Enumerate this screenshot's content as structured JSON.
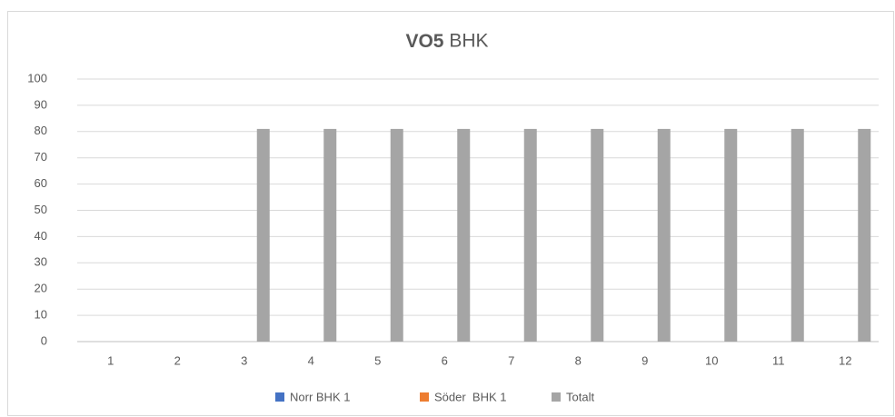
{
  "chart_data": {
    "type": "bar",
    "title": "VO5 BHK",
    "categories": [
      "1",
      "2",
      "3",
      "4",
      "5",
      "6",
      "7",
      "8",
      "9",
      "10",
      "11",
      "12"
    ],
    "series": [
      {
        "name": "Norr BHK 1",
        "color": "#4472c4",
        "values": [
          null,
          null,
          null,
          null,
          null,
          null,
          null,
          null,
          null,
          null,
          null,
          null
        ]
      },
      {
        "name": "Söder  BHK 1",
        "color": "#ed7d31",
        "values": [
          null,
          null,
          null,
          null,
          null,
          null,
          null,
          null,
          null,
          null,
          null,
          null
        ]
      },
      {
        "name": "Totalt",
        "color": "#a5a5a5",
        "values": [
          null,
          null,
          81,
          81,
          81,
          81,
          81,
          81,
          81,
          81,
          81,
          81
        ]
      }
    ],
    "ylim": [
      0,
      100
    ],
    "yticks": [
      0,
      10,
      20,
      30,
      40,
      50,
      60,
      70,
      80,
      90,
      100
    ],
    "grid": true,
    "legend": "bottom"
  }
}
